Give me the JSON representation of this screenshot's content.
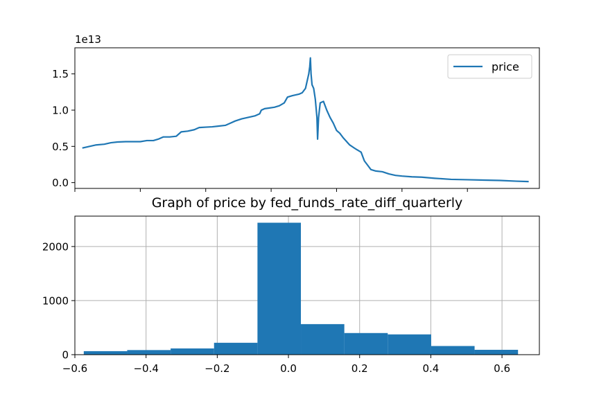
{
  "chart_data": [
    {
      "type": "line",
      "title": "",
      "xlabel": "",
      "ylabel": "",
      "offset_text": "1e13",
      "series": [
        {
          "name": "price",
          "color": "#1f77b4",
          "points": [
            [
              -0.575,
              0.48
            ],
            [
              -0.555,
              0.5
            ],
            [
              -0.535,
              0.52
            ],
            [
              -0.51,
              0.53
            ],
            [
              -0.49,
              0.55
            ],
            [
              -0.47,
              0.56
            ],
            [
              -0.445,
              0.565
            ],
            [
              -0.42,
              0.565
            ],
            [
              -0.4,
              0.565
            ],
            [
              -0.38,
              0.58
            ],
            [
              -0.36,
              0.58
            ],
            [
              -0.345,
              0.6
            ],
            [
              -0.33,
              0.63
            ],
            [
              -0.31,
              0.63
            ],
            [
              -0.29,
              0.64
            ],
            [
              -0.275,
              0.7
            ],
            [
              -0.255,
              0.71
            ],
            [
              -0.235,
              0.73
            ],
            [
              -0.22,
              0.76
            ],
            [
              -0.2,
              0.765
            ],
            [
              -0.18,
              0.77
            ],
            [
              -0.16,
              0.78
            ],
            [
              -0.14,
              0.79
            ],
            [
              -0.125,
              0.82
            ],
            [
              -0.11,
              0.85
            ],
            [
              -0.09,
              0.88
            ],
            [
              -0.07,
              0.9
            ],
            [
              -0.05,
              0.92
            ],
            [
              -0.035,
              0.95
            ],
            [
              -0.03,
              1.0
            ],
            [
              -0.02,
              1.02
            ],
            [
              -0.005,
              1.03
            ],
            [
              0.01,
              1.04
            ],
            [
              0.025,
              1.06
            ],
            [
              0.04,
              1.1
            ],
            [
              0.05,
              1.18
            ],
            [
              0.065,
              1.2
            ],
            [
              0.085,
              1.22
            ],
            [
              0.095,
              1.24
            ],
            [
              0.105,
              1.3
            ],
            [
              0.11,
              1.4
            ],
            [
              0.115,
              1.5
            ],
            [
              0.118,
              1.6
            ],
            [
              0.12,
              1.72
            ],
            [
              0.122,
              1.5
            ],
            [
              0.125,
              1.35
            ],
            [
              0.13,
              1.3
            ],
            [
              0.135,
              1.15
            ],
            [
              0.14,
              0.9
            ],
            [
              0.142,
              0.6
            ],
            [
              0.145,
              0.9
            ],
            [
              0.15,
              1.1
            ],
            [
              0.16,
              1.12
            ],
            [
              0.17,
              1.0
            ],
            [
              0.18,
              0.9
            ],
            [
              0.19,
              0.82
            ],
            [
              0.2,
              0.72
            ],
            [
              0.21,
              0.68
            ],
            [
              0.22,
              0.62
            ],
            [
              0.24,
              0.52
            ],
            [
              0.26,
              0.46
            ],
            [
              0.275,
              0.42
            ],
            [
              0.285,
              0.3
            ],
            [
              0.295,
              0.24
            ],
            [
              0.305,
              0.18
            ],
            [
              0.32,
              0.16
            ],
            [
              0.34,
              0.15
            ],
            [
              0.36,
              0.12
            ],
            [
              0.38,
              0.1
            ],
            [
              0.4,
              0.09
            ],
            [
              0.43,
              0.08
            ],
            [
              0.46,
              0.075
            ],
            [
              0.5,
              0.06
            ],
            [
              0.55,
              0.045
            ],
            [
              0.6,
              0.04
            ],
            [
              0.65,
              0.035
            ],
            [
              0.7,
              0.03
            ],
            [
              0.75,
              0.02
            ],
            [
              0.785,
              0.015
            ]
          ]
        }
      ],
      "xlim": [
        -0.6,
        0.82
      ],
      "xticks": [
        -0.6,
        -0.4,
        -0.2,
        0.0,
        0.2,
        0.4,
        0.6
      ],
      "show_xtick_labels": false,
      "ylim": [
        -0.08,
        1.86
      ],
      "yticks": [
        0.0,
        0.5,
        1.0,
        1.5
      ],
      "ytick_labels": [
        "0.0",
        "0.5",
        "1.0",
        "1.5"
      ],
      "grid": false,
      "legend": "top-right"
    },
    {
      "type": "bar",
      "title": "Graph of price by fed_funds_rate_diff_quarterly",
      "xlabel": "",
      "ylabel": "",
      "color": "#1f77b4",
      "bins": [
        {
          "x0": -0.575,
          "x1": -0.453,
          "count": 65
        },
        {
          "x0": -0.453,
          "x1": -0.331,
          "count": 85
        },
        {
          "x0": -0.331,
          "x1": -0.209,
          "count": 115
        },
        {
          "x0": -0.209,
          "x1": -0.087,
          "count": 220
        },
        {
          "x0": -0.087,
          "x1": 0.035,
          "count": 2440
        },
        {
          "x0": 0.035,
          "x1": 0.157,
          "count": 565
        },
        {
          "x0": 0.157,
          "x1": 0.279,
          "count": 400
        },
        {
          "x0": 0.279,
          "x1": 0.401,
          "count": 375
        },
        {
          "x0": 0.401,
          "x1": 0.523,
          "count": 160
        },
        {
          "x0": 0.523,
          "x1": 0.645,
          "count": 90
        }
      ],
      "xlim": [
        -0.6,
        0.705
      ],
      "xticks": [
        -0.6,
        -0.4,
        -0.2,
        0.0,
        0.2,
        0.4,
        0.6
      ],
      "xtick_labels": [
        "−0.6",
        "−0.4",
        "−0.2",
        "0.0",
        "0.2",
        "0.4",
        "0.6"
      ],
      "ylim": [
        0,
        2562
      ],
      "yticks": [
        0,
        1000,
        2000
      ],
      "ytick_labels": [
        "0",
        "1000",
        "2000"
      ],
      "grid": true
    }
  ]
}
